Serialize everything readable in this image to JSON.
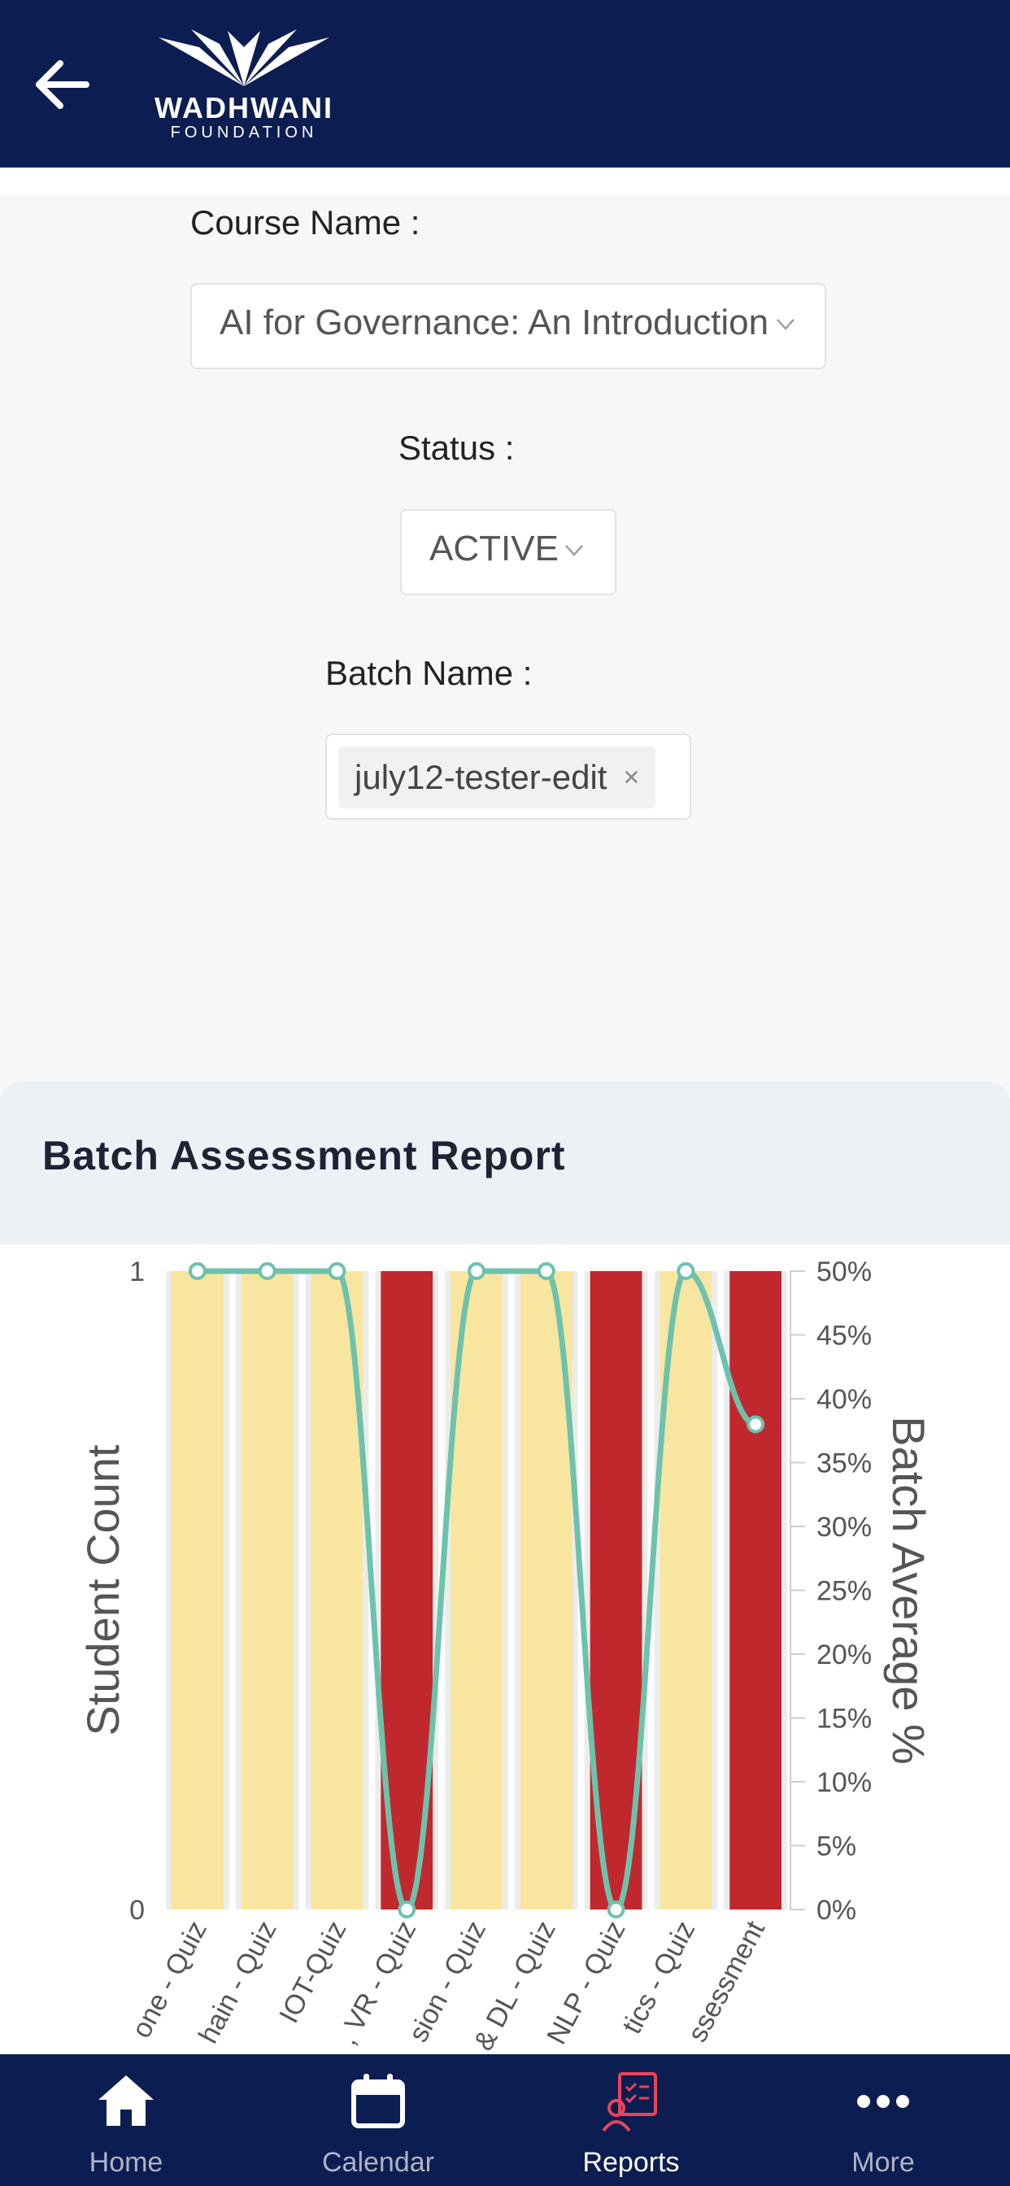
{
  "header": {
    "logo_line1": "WADHWANI",
    "logo_line2": "FOUNDATION"
  },
  "filters": {
    "course_label": "Course Name :",
    "course_value": "AI for Governance: An Introduction",
    "status_label": "Status :",
    "status_value": "ACTIVE",
    "batch_label": "Batch Name :",
    "batch_tag": "july12-tester-edit",
    "batch_tag_remove": "×"
  },
  "report": {
    "title": "Batch Assessment Report"
  },
  "chart_data": {
    "type": "bar",
    "categories": [
      "one - Quiz",
      "hain - Quiz",
      "IOT-Quiz",
      ", VR - Quiz",
      "sion - Quiz",
      "& DL - Quiz",
      "NLP - Quiz",
      "tics - Quiz",
      "ssessment"
    ],
    "series": [
      {
        "values": [
          1,
          1,
          1,
          1,
          1,
          1,
          1,
          1,
          1
        ],
        "colors": [
          "#f8e6a0",
          "#f8e6a0",
          "#f8e6a0",
          "#c0282d",
          "#f8e6a0",
          "#f8e6a0",
          "#c0282d",
          "#f8e6a0",
          "#c0282d"
        ]
      },
      {
        "type": "line",
        "axis": "right",
        "values": [
          50,
          50,
          50,
          0,
          50,
          50,
          0,
          50,
          38
        ],
        "color": "#6dc2ad"
      }
    ],
    "ylabel": "Student Count",
    "y2label": "Batch Average %",
    "ylim": [
      0,
      1
    ],
    "y_ticks": [
      "0",
      "1"
    ],
    "y2lim": [
      0,
      50
    ],
    "y2_ticks": [
      "0%",
      "5%",
      "10%",
      "15%",
      "20%",
      "25%",
      "30%",
      "35%",
      "40%",
      "45%",
      "50%"
    ]
  },
  "nav": {
    "items": [
      {
        "label": "Home",
        "icon": "home-icon"
      },
      {
        "label": "Calendar",
        "icon": "calendar-icon"
      },
      {
        "label": "Reports",
        "icon": "reports-icon"
      },
      {
        "label": "More",
        "icon": "more-icon"
      }
    ]
  },
  "colors": {
    "header_bg": "#0c1d52",
    "pass_bar": "#f8e6a0",
    "fail_bar": "#c0282d",
    "line": "#6dc2ad",
    "active_icon": "#e8445a"
  }
}
